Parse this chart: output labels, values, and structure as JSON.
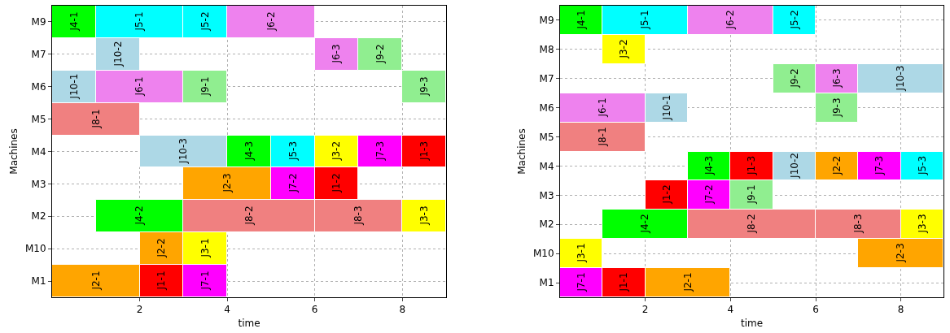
{
  "chart_data": [
    {
      "type": "bar",
      "orientation": "horizontal",
      "xlabel": "time",
      "ylabel": "Machines",
      "xlim": [
        0,
        9
      ],
      "xticks": [
        2,
        4,
        6,
        8
      ],
      "grid": true,
      "categories": [
        "M9",
        "M7",
        "M6",
        "M5",
        "M4",
        "M3",
        "M2",
        "M10",
        "M1"
      ],
      "series": [
        {
          "values": [
            1,
            1,
            1,
            2,
            2,
            2,
            2,
            1,
            2
          ],
          "base": [
            0,
            1,
            0,
            0,
            2,
            3,
            1,
            2,
            0
          ],
          "value_labels": [
            "J4-1",
            "J10-2",
            "J10-1",
            "J8-1",
            "J10-3",
            "J2-3",
            "J4-2",
            "J2-2",
            "J2-1"
          ],
          "colors": [
            "#00ff00",
            "#add8e6",
            "#add8e6",
            "#f08080",
            "#add8e6",
            "#ffa500",
            "#00ff00",
            "#ffa500",
            "#ffa500"
          ]
        },
        {
          "values": [
            2,
            1,
            2,
            null,
            1,
            1,
            3,
            1,
            1
          ],
          "base": [
            1,
            6,
            1,
            null,
            4,
            5,
            3,
            3,
            2
          ],
          "value_labels": [
            "J5-1",
            "J6-3",
            "J6-1",
            null,
            "J4-3",
            "J7-2",
            "J8-2",
            "J3-1",
            "J1-1"
          ],
          "colors": [
            "#00ffff",
            "#ee82ee",
            "#ee82ee",
            "#ffffff",
            "#00ff00",
            "#ff00ff",
            "#f08080",
            "#ffff00",
            "#ff0000"
          ]
        },
        {
          "values": [
            1,
            1,
            1,
            null,
            1,
            1,
            2,
            null,
            1
          ],
          "base": [
            3,
            7,
            3,
            null,
            5,
            6,
            6,
            null,
            3
          ],
          "value_labels": [
            "J5-2",
            "J9-2",
            "J9-1",
            null,
            "J5-3",
            "J1-2",
            "J8-3",
            null,
            "J7-1"
          ],
          "colors": [
            "#00ffff",
            "#90ee90",
            "#90ee90",
            "#ffffff",
            "#00ffff",
            "#ff0000",
            "#f08080",
            "#ffffff",
            "#ff00ff"
          ]
        },
        {
          "values": [
            2,
            null,
            1,
            null,
            1,
            null,
            1,
            null,
            null
          ],
          "base": [
            4,
            null,
            8,
            null,
            6,
            null,
            8,
            null,
            null
          ],
          "value_labels": [
            "J6-2",
            null,
            "J9-3",
            null,
            "J3-2",
            null,
            "J3-3",
            null,
            null
          ],
          "colors": [
            "#ee82ee",
            "#ffffff",
            "#90ee90",
            "#ffffff",
            "#ffff00",
            "#ffffff",
            "#ffff00",
            "#ffffff",
            "#ffffff"
          ]
        },
        {
          "values": [
            null,
            null,
            null,
            null,
            1,
            null,
            null,
            null,
            null
          ],
          "base": [
            null,
            null,
            null,
            null,
            7,
            null,
            null,
            null,
            null
          ],
          "value_labels": [
            null,
            null,
            null,
            null,
            "J7-3",
            null,
            null,
            null,
            null
          ],
          "colors": [
            "#ffffff",
            "#ffffff",
            "#ffffff",
            "#ffffff",
            "#ff00ff",
            "#ffffff",
            "#ffffff",
            "#ffffff",
            "#ffffff"
          ]
        },
        {
          "values": [
            null,
            null,
            null,
            null,
            1,
            null,
            null,
            null,
            null
          ],
          "base": [
            null,
            null,
            null,
            null,
            8,
            null,
            null,
            null,
            null
          ],
          "value_labels": [
            null,
            null,
            null,
            null,
            "J1-3",
            null,
            null,
            null,
            null
          ],
          "colors": [
            "#ffffff",
            "#ffffff",
            "#ffffff",
            "#ffffff",
            "#ff0000",
            "#ffffff",
            "#ffffff",
            "#ffffff",
            "#ffffff"
          ]
        }
      ]
    },
    {
      "type": "bar",
      "orientation": "horizontal",
      "xlabel": "time",
      "ylabel": "Machines",
      "xlim": [
        0,
        9
      ],
      "xticks": [
        2,
        4,
        6,
        8
      ],
      "grid": true,
      "categories": [
        "M9",
        "M8",
        "M7",
        "M6",
        "M5",
        "M4",
        "M3",
        "M2",
        "M10",
        "M1"
      ],
      "series": [
        {
          "values": [
            1,
            1,
            1,
            2,
            2,
            1,
            1,
            2,
            1,
            1
          ],
          "base": [
            0,
            1,
            5,
            0,
            0,
            3,
            2,
            1,
            0,
            0
          ],
          "value_labels": [
            "J4-1",
            "J3-2",
            "J9-2",
            "J6-1",
            "J8-1",
            "J4-3",
            "J1-2",
            "J4-2",
            "J3-1",
            "J7-1"
          ],
          "colors": [
            "#00ff00",
            "#ffff00",
            "#90ee90",
            "#ee82ee",
            "#f08080",
            "#00ff00",
            "#ff0000",
            "#00ff00",
            "#ffff00",
            "#ff00ff"
          ]
        },
        {
          "values": [
            2,
            null,
            1,
            1,
            null,
            1,
            1,
            3,
            2,
            1
          ],
          "base": [
            1,
            null,
            6,
            2,
            null,
            4,
            3,
            3,
            7,
            1
          ],
          "value_labels": [
            "J5-1",
            null,
            "J6-3",
            "J10-1",
            null,
            "J1-3",
            "J7-2",
            "J8-2",
            "J2-3",
            "J1-1"
          ],
          "colors": [
            "#00ffff",
            "#ffffff",
            "#ee82ee",
            "#add8e6",
            "#ffffff",
            "#ff0000",
            "#ff00ff",
            "#f08080",
            "#ffa500",
            "#ff0000"
          ]
        },
        {
          "values": [
            2,
            null,
            2,
            1,
            null,
            1,
            1,
            2,
            null,
            2
          ],
          "base": [
            3,
            null,
            7,
            6,
            null,
            5,
            4,
            6,
            null,
            2
          ],
          "value_labels": [
            "J6-2",
            null,
            "J10-3",
            "J9-3",
            null,
            "J10-2",
            "J9-1",
            "J8-3",
            null,
            "J2-1"
          ],
          "colors": [
            "#ee82ee",
            "#ffffff",
            "#add8e6",
            "#90ee90",
            "#ffffff",
            "#add8e6",
            "#90ee90",
            "#f08080",
            "#ffffff",
            "#ffa500"
          ]
        },
        {
          "values": [
            1,
            null,
            null,
            null,
            null,
            1,
            null,
            1,
            null,
            null
          ],
          "base": [
            5,
            null,
            null,
            null,
            null,
            6,
            null,
            8,
            null,
            null
          ],
          "value_labels": [
            "J5-2",
            null,
            null,
            null,
            null,
            "J2-2",
            null,
            "J3-3",
            null,
            null
          ],
          "colors": [
            "#00ffff",
            "#ffffff",
            "#ffffff",
            "#ffffff",
            "#ffffff",
            "#ffa500",
            "#ffffff",
            "#ffff00",
            "#ffffff",
            "#ffffff"
          ]
        },
        {
          "values": [
            null,
            null,
            null,
            null,
            null,
            1,
            null,
            null,
            null,
            null
          ],
          "base": [
            null,
            null,
            null,
            null,
            null,
            7,
            null,
            null,
            null,
            null
          ],
          "value_labels": [
            null,
            null,
            null,
            null,
            null,
            "J7-3",
            null,
            null,
            null,
            null
          ],
          "colors": [
            "#ffffff",
            "#ffffff",
            "#ffffff",
            "#ffffff",
            "#ffffff",
            "#ff00ff",
            "#ffffff",
            "#ffffff",
            "#ffffff",
            "#ffffff"
          ]
        },
        {
          "values": [
            null,
            null,
            null,
            null,
            null,
            1,
            null,
            null,
            null,
            null
          ],
          "base": [
            null,
            null,
            null,
            null,
            null,
            8,
            null,
            null,
            null,
            null
          ],
          "value_labels": [
            null,
            null,
            null,
            null,
            null,
            "J5-3",
            null,
            null,
            null,
            null
          ],
          "colors": [
            "#ffffff",
            "#ffffff",
            "#ffffff",
            "#ffffff",
            "#ffffff",
            "#00ffff",
            "#ffffff",
            "#ffffff",
            "#ffffff",
            "#ffffff"
          ]
        }
      ]
    }
  ]
}
